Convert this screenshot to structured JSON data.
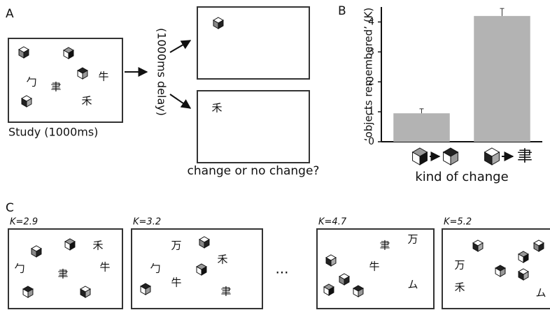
{
  "panel_labels": [
    "A",
    "B",
    "C"
  ],
  "panel_a": {
    "study_label": "Study (1000ms)",
    "delay_label": "(1000ms delay)",
    "question": "change or no change?",
    "study_glyphs": [
      "勹",
      "聿",
      "牛",
      "禾"
    ],
    "test_glyph": "禾"
  },
  "chart_data": {
    "type": "bar",
    "ylabel": "‘objects remembered’ (K)",
    "xlabel": "kind of change",
    "categories": [
      null,
      null
    ],
    "values": [
      0.95,
      4.2
    ],
    "errors": [
      0.15,
      0.25
    ],
    "color": "#b3b3b3",
    "ylim": [
      0,
      4.5
    ],
    "yticks": [
      0,
      1,
      2,
      3,
      4
    ],
    "icon_glyph": "聿"
  },
  "panel_c": {
    "ellipsis": "...",
    "displays": [
      {
        "k_label": "K=2.9",
        "glyphs": [
          "禾",
          "勹",
          "聿",
          "牛"
        ]
      },
      {
        "k_label": "K=3.2",
        "glyphs": [
          "万",
          "禾",
          "勹",
          "牛",
          "聿"
        ]
      },
      {
        "k_label": "K=4.7",
        "glyphs": [
          "聿",
          "万",
          "牛",
          "ム"
        ]
      },
      {
        "k_label": "K=5.2",
        "glyphs": [
          "万",
          "禾",
          "ム"
        ]
      }
    ]
  }
}
